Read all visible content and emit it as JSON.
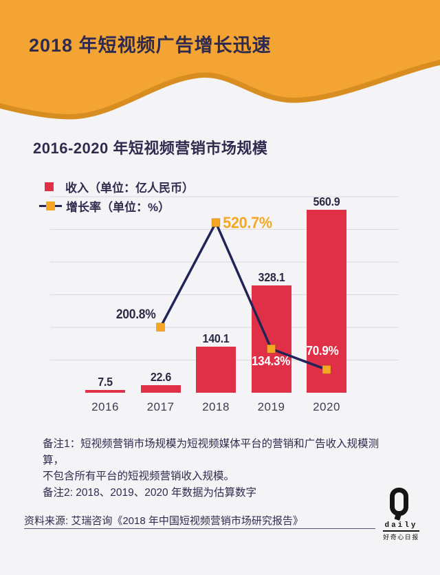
{
  "page": {
    "background": "#F4F4F6"
  },
  "header": {
    "title": "2018 年短视频广告增长迅速",
    "bg_color": "#F4A432",
    "edge_shadow_color": "#D88D20",
    "title_color": "#2F2B4E"
  },
  "section": {
    "title": "2016-2020 年短视频营销市场规模"
  },
  "legend": {
    "revenue": {
      "label": "收入（单位：亿人民币）",
      "swatch": "red-square",
      "color": "#DF3048"
    },
    "growth": {
      "label": "增长率（单位：%）",
      "swatch": "line-with-orange-marker",
      "line_color": "#222457",
      "marker_color": "#F5A623"
    }
  },
  "chart_data": {
    "type": "bar",
    "subtype": "bar-line-combo",
    "title": "2016-2020 年短视频营销市场规模",
    "categories": [
      "2016",
      "2017",
      "2018",
      "2019",
      "2020"
    ],
    "series": [
      {
        "name": "收入",
        "type": "bar",
        "unit": "亿人民币",
        "values": [
          7.5,
          22.6,
          140.1,
          328.1,
          560.9
        ],
        "labels": [
          "7.5",
          "22.6",
          "140.1",
          "328.1",
          "560.9"
        ],
        "color": "#DF3048"
      },
      {
        "name": "增长率",
        "type": "line",
        "unit": "%",
        "values": [
          null,
          200.8,
          520.7,
          134.3,
          70.9
        ],
        "labels": [
          null,
          "200.8%",
          "520.7%",
          "134.3%",
          "70.9%"
        ],
        "line_color": "#222457",
        "marker_color": "#F5A623",
        "highlight_label": "520.7%"
      }
    ],
    "ylim": [
      0,
      600
    ],
    "gridline_values": [
      100,
      200,
      300,
      400,
      500,
      600
    ],
    "gridline_color": "#D9D9DE",
    "grid": true,
    "legend_position": "top-left",
    "xlabel": "",
    "ylabel": ""
  },
  "notes": {
    "line1": "备注1：短视频营销市场规模为短视频媒体平台的营销和广告收入规模测算，",
    "line2": "不包含所有平台的短视频营销收入规模。",
    "line3": "备注2: 2018、2019、2020 年数据为估算数字"
  },
  "source": {
    "text": "资料来源: 艾瑞咨询《2018 年中国短视频营销市场研究报告》"
  },
  "logo": {
    "daily": "daily",
    "cn": "好奇心日报"
  }
}
